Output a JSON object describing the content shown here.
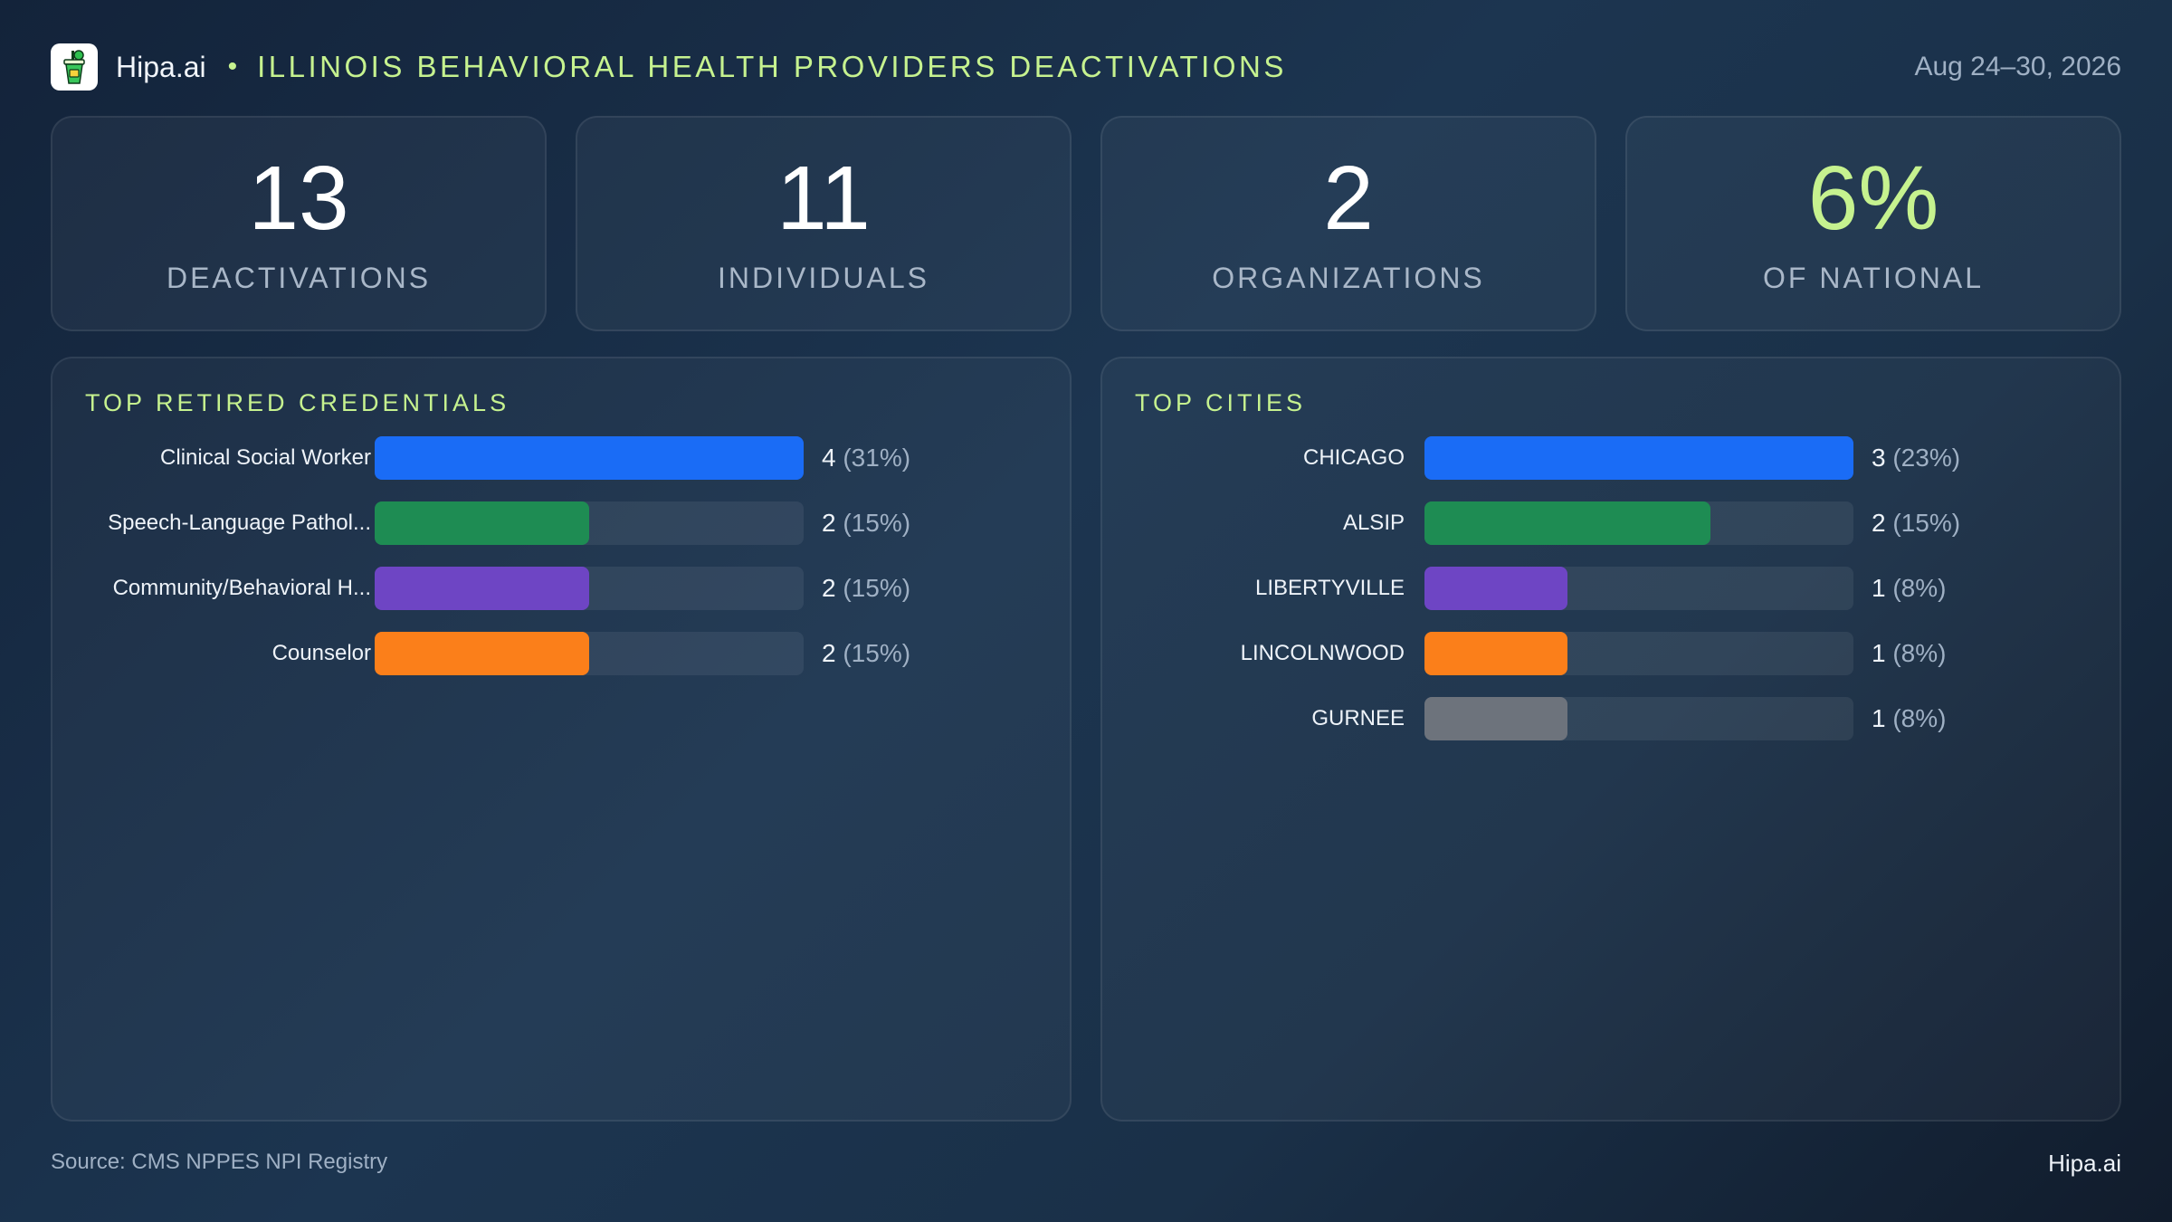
{
  "header": {
    "brand": "Hipa.ai",
    "separator": "•",
    "title": "ILLINOIS BEHAVIORAL HEALTH PROVIDERS DEACTIVATIONS",
    "date_range": "Aug 24–30, 2026"
  },
  "kpis": [
    {
      "value": "13",
      "label": "DEACTIVATIONS"
    },
    {
      "value": "11",
      "label": "INDIVIDUALS"
    },
    {
      "value": "2",
      "label": "ORGANIZATIONS"
    },
    {
      "value": "6%",
      "label": "OF NATIONAL"
    }
  ],
  "chart_data": [
    {
      "type": "bar",
      "orientation": "horizontal",
      "title": "TOP RETIRED CREDENTIALS",
      "categories": [
        "Clinical Social Worker",
        "Speech-Language Pathol...",
        "Community/Behavioral  H...",
        "Counselor"
      ],
      "values": [
        4,
        2,
        2,
        2
      ],
      "percents": [
        "31%",
        "15%",
        "15%",
        "15%"
      ],
      "colors": [
        "#1a6cf6",
        "#1e8c53",
        "#6e45c4",
        "#fb7f1a"
      ],
      "xlim": [
        0,
        4
      ]
    },
    {
      "type": "bar",
      "orientation": "horizontal",
      "title": "TOP CITIES",
      "categories": [
        "CHICAGO",
        "ALSIP",
        "LIBERTYVILLE",
        "LINCOLNWOOD",
        "GURNEE"
      ],
      "values": [
        3,
        2,
        1,
        1,
        1
      ],
      "percents": [
        "23%",
        "15%",
        "8%",
        "8%",
        "8%"
      ],
      "colors": [
        "#1a6cf6",
        "#1e8c53",
        "#6e45c4",
        "#fb7f1a",
        "#6d737c"
      ],
      "xlim": [
        0,
        3
      ]
    }
  ],
  "footer": {
    "source": "Source: CMS NPPES NPI Registry",
    "brand": "Hipa.ai"
  }
}
